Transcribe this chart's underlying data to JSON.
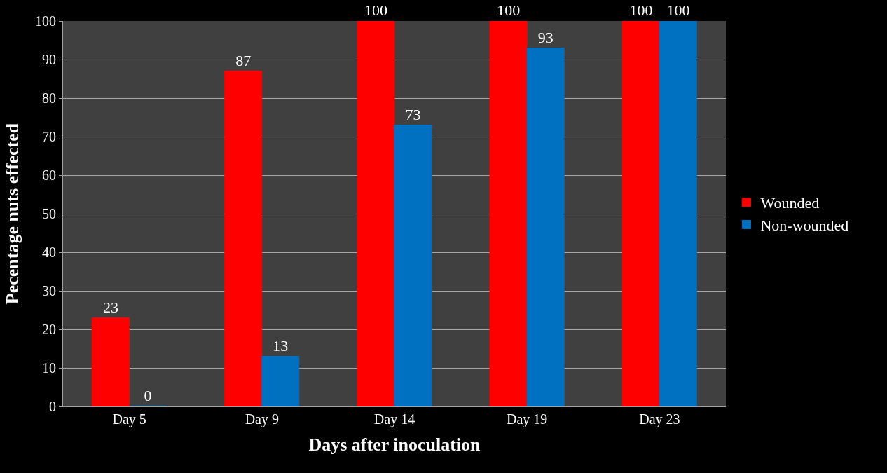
{
  "chart_data": {
    "type": "bar",
    "xlabel": "Days after inoculation",
    "ylabel": "Pecentage nuts effected",
    "categories": [
      "Day 5",
      "Day 9",
      "Day 14",
      "Day 19",
      "Day 23"
    ],
    "series": [
      {
        "name": "Wounded",
        "color": "#ff0000",
        "values": [
          23,
          87,
          100,
          100,
          100
        ]
      },
      {
        "name": "Non-wounded",
        "color": "#0070c0",
        "values": [
          0,
          13,
          73,
          93,
          100
        ]
      }
    ],
    "ylim": [
      0,
      100
    ],
    "yticks": [
      0,
      10,
      20,
      30,
      40,
      50,
      60,
      70,
      80,
      90,
      100
    ],
    "grid": "y",
    "legend": "right",
    "data_labels": true
  }
}
